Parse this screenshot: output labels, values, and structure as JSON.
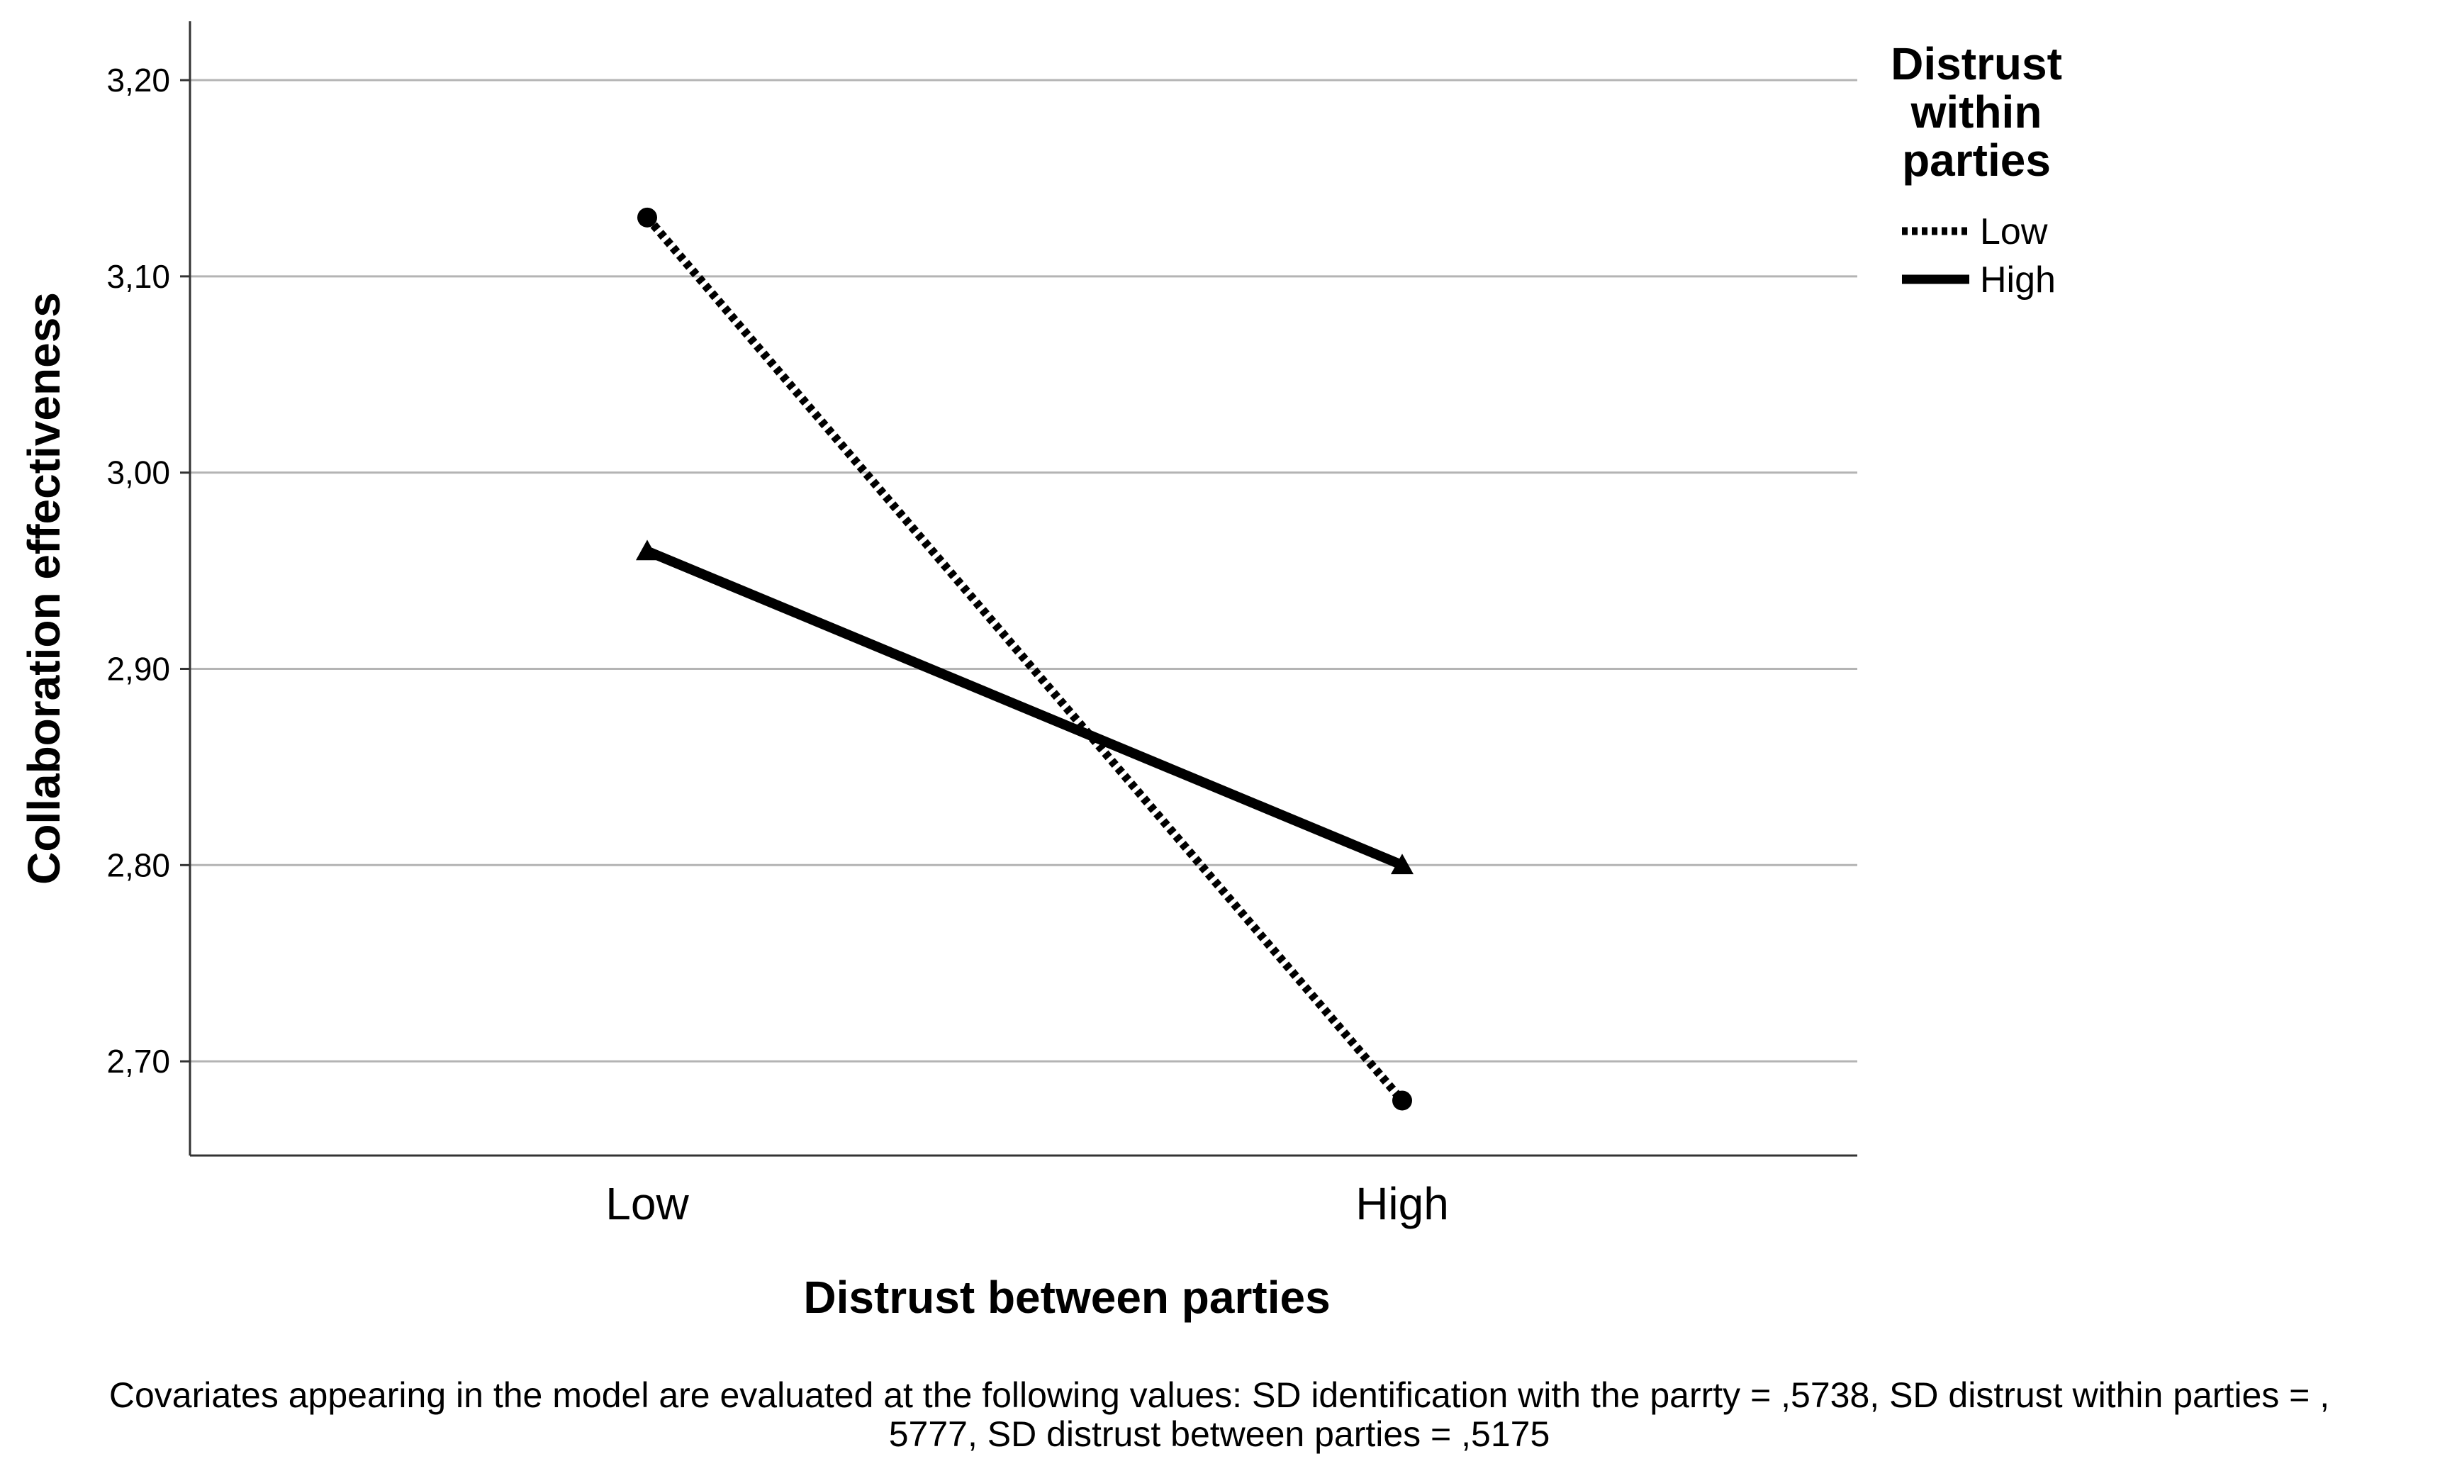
{
  "chart_data": {
    "type": "line",
    "categories": [
      "Low",
      "High"
    ],
    "xlabel": "Distrust between parties",
    "ylabel": "Collaboration effectiveness",
    "ylim": [
      2.652,
      3.23
    ],
    "yticks": [
      2.7,
      2.8,
      2.9,
      3.0,
      3.1,
      3.2
    ],
    "ytick_labels": [
      "2,70",
      "2,80",
      "2,90",
      "3,00",
      "3,10",
      "3,20"
    ],
    "grid": "horizontal",
    "legend": {
      "title_lines": [
        "Distrust",
        "within",
        "parties"
      ],
      "placement": "top-right, outside plot"
    },
    "series": [
      {
        "name": "Low",
        "values": [
          3.13,
          2.68
        ],
        "line_style": "dotted",
        "marker": "circle",
        "color": "#000000"
      },
      {
        "name": "High",
        "values": [
          2.96,
          2.8
        ],
        "line_style": "solid",
        "marker": "triangle",
        "color": "#000000"
      }
    ],
    "footnote_lines": [
      "Covariates appearing in the model are evaluated at the following values: SD identification with the parrty = ,5738, SD distrust within parties = ,",
      "5777, SD distrust between parties = ,5175"
    ],
    "colors": {
      "gridline": "#b4b4b4",
      "axis": "#333333",
      "series": "#000000"
    }
  }
}
